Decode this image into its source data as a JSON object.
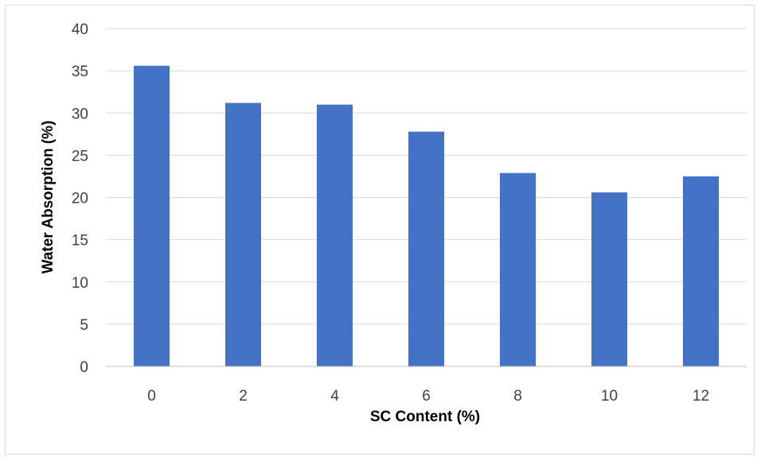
{
  "chart_data": {
    "type": "bar",
    "title": "",
    "xlabel": "SC Content (%)",
    "ylabel": "Water Absorption (%)",
    "categories": [
      "0",
      "2",
      "4",
      "6",
      "8",
      "10",
      "12"
    ],
    "values": [
      35.6,
      31.2,
      31.0,
      27.8,
      22.9,
      20.6,
      22.5
    ],
    "ylim": [
      0,
      40
    ],
    "yticks": [
      0,
      5,
      10,
      15,
      20,
      25,
      30,
      35,
      40
    ],
    "grid": true,
    "legend": "none",
    "bar_color": "#4472C4",
    "grid_color": "#d9d9d9",
    "axis_color": "#bfbfbf"
  }
}
